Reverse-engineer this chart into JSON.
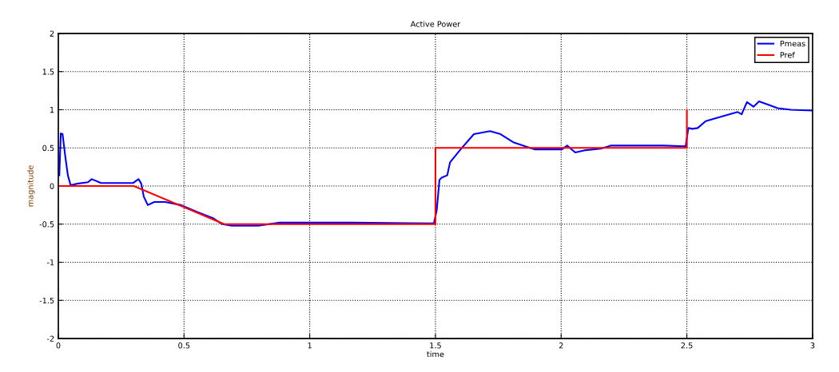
{
  "chart_data": {
    "type": "line",
    "title": "Active Power",
    "xlabel": "time",
    "ylabel": "magnitude",
    "xlim": [
      0,
      3
    ],
    "xticks": [
      0,
      0.5,
      1,
      1.5,
      2,
      2.5,
      3
    ],
    "ylim": [
      -2,
      2
    ],
    "yticks": [
      -2,
      -1.5,
      -1,
      -0.5,
      0,
      0.5,
      1,
      1.5,
      2
    ],
    "grid": true,
    "legend": "top right",
    "line_style": "solid",
    "marker": "none",
    "series": [
      {
        "name": "Pmeas",
        "color": "#0000ff",
        "x": [
          0.004,
          0.01,
          0.017,
          0.028,
          0.038,
          0.049,
          0.075,
          0.118,
          0.133,
          0.17,
          0.298,
          0.319,
          0.33,
          0.34,
          0.356,
          0.382,
          0.425,
          0.488,
          0.552,
          0.615,
          0.652,
          0.69,
          0.795,
          0.88,
          1.166,
          1.494,
          1.505,
          1.516,
          1.525,
          1.547,
          1.558,
          1.6,
          1.653,
          1.717,
          1.759,
          1.812,
          1.876,
          1.897,
          2.003,
          2.024,
          2.056,
          2.098,
          2.157,
          2.199,
          2.405,
          2.495,
          2.506,
          2.522,
          2.543,
          2.575,
          2.638,
          2.702,
          2.718,
          2.739,
          2.765,
          2.787,
          2.829,
          2.861,
          2.914,
          3.0
        ],
        "values": [
          0.14,
          0.69,
          0.68,
          0.38,
          0.14,
          0.01,
          0.03,
          0.05,
          0.09,
          0.04,
          0.04,
          0.09,
          0.03,
          -0.14,
          -0.25,
          -0.21,
          -0.21,
          -0.25,
          -0.34,
          -0.42,
          -0.5,
          -0.52,
          -0.52,
          -0.48,
          -0.48,
          -0.49,
          -0.32,
          0.08,
          0.11,
          0.14,
          0.31,
          0.48,
          0.68,
          0.72,
          0.68,
          0.57,
          0.5,
          0.48,
          0.48,
          0.53,
          0.44,
          0.47,
          0.49,
          0.53,
          0.53,
          0.52,
          0.76,
          0.75,
          0.76,
          0.85,
          0.91,
          0.97,
          0.94,
          1.1,
          1.04,
          1.11,
          1.06,
          1.02,
          1.0,
          0.99
        ]
      },
      {
        "name": "Pref",
        "color": "#ff0000",
        "x": [
          0,
          0.3,
          0.66,
          1.5,
          1.5,
          2.5,
          2.5,
          2.5
        ],
        "values": [
          0,
          0,
          -0.5,
          -0.5,
          0.5,
          0.5,
          1.0,
          0.5
        ]
      }
    ]
  }
}
